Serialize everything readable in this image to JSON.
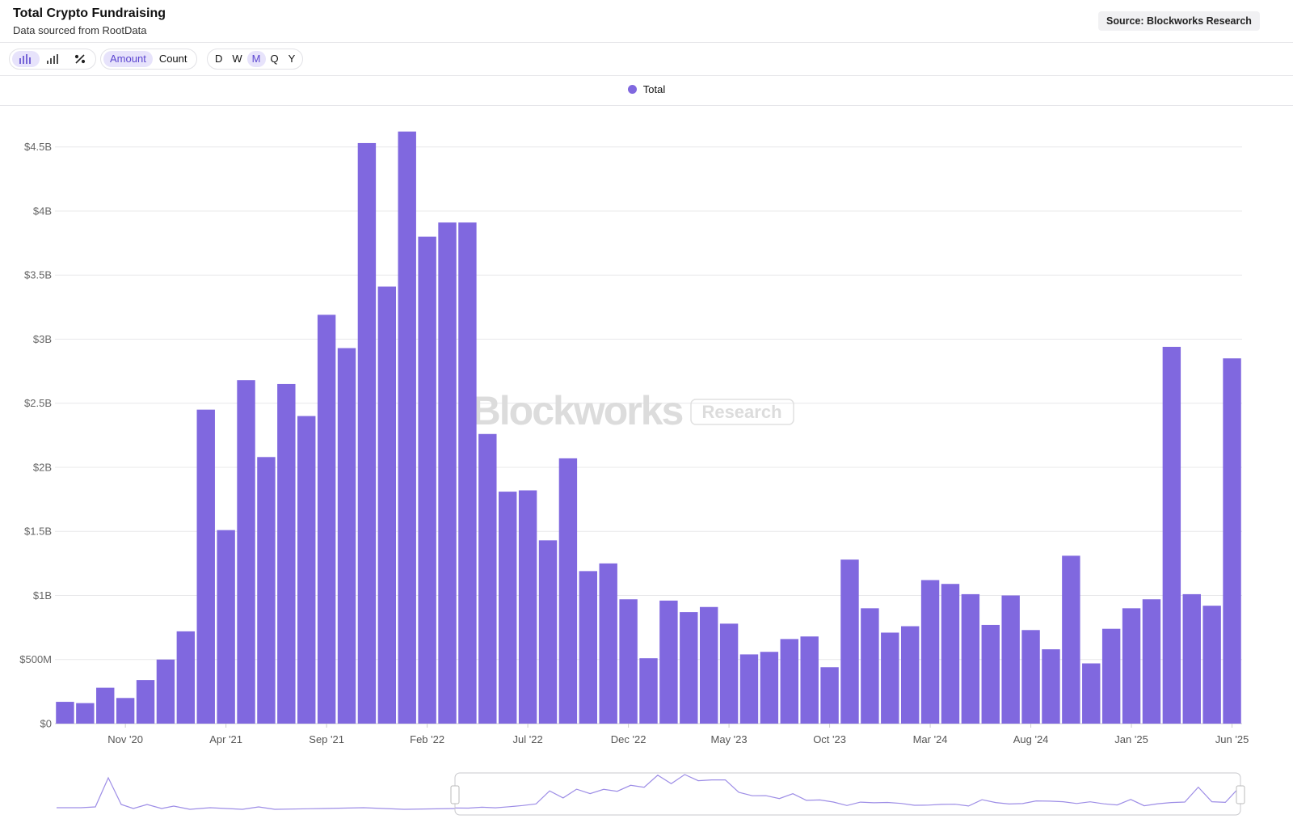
{
  "header": {
    "title": "Total Crypto Fundraising",
    "subtitle": "Data sourced from RootData",
    "source": "Source: Blockworks Research"
  },
  "toolbar": {
    "metrics": [
      "Amount",
      "Count"
    ],
    "active_metric": "Amount",
    "periods": [
      "D",
      "W",
      "M",
      "Q",
      "Y"
    ],
    "active_period": "M"
  },
  "watermark": {
    "brand": "Blockworks",
    "tag": "Research"
  },
  "chart_data": {
    "type": "bar",
    "categories": [
      null,
      null,
      null,
      "Nov '20",
      null,
      null,
      null,
      null,
      "Apr '21",
      null,
      null,
      null,
      null,
      "Sep '21",
      null,
      null,
      null,
      null,
      "Feb '22",
      null,
      null,
      null,
      null,
      "Jul '22",
      null,
      null,
      null,
      null,
      "Dec '22",
      null,
      null,
      null,
      null,
      "May '23",
      null,
      null,
      null,
      null,
      "Oct '23",
      null,
      null,
      null,
      null,
      "Mar '24",
      null,
      null,
      null,
      null,
      "Aug '24",
      null,
      null,
      null,
      null,
      "Jan '25",
      null,
      null,
      null,
      null,
      "Jun '25"
    ],
    "series": [
      {
        "name": "Total",
        "color": "#8068df",
        "values": [
          170000000,
          160000000,
          280000000,
          200000000,
          340000000,
          500000000,
          720000000,
          2450000000,
          1510000000,
          2680000000,
          2080000000,
          2650000000,
          2400000000,
          3190000000,
          2930000000,
          4530000000,
          3410000000,
          4620000000,
          3800000000,
          3910000000,
          3910000000,
          2260000000,
          1810000000,
          1820000000,
          1430000000,
          2070000000,
          1190000000,
          1250000000,
          970000000,
          510000000,
          960000000,
          870000000,
          910000000,
          780000000,
          540000000,
          560000000,
          660000000,
          680000000,
          440000000,
          1280000000,
          900000000,
          710000000,
          760000000,
          1120000000,
          1090000000,
          1010000000,
          770000000,
          1000000000,
          730000000,
          580000000,
          1310000000,
          470000000,
          740000000,
          900000000,
          970000000,
          2940000000,
          1010000000,
          920000000,
          2850000000
        ]
      }
    ],
    "ylim": [
      0,
      4700000000
    ],
    "yticks": [
      {
        "value": 0,
        "label": "$0"
      },
      {
        "value": 500000000,
        "label": "$500M"
      },
      {
        "value": 1000000000,
        "label": "$1B"
      },
      {
        "value": 1500000000,
        "label": "$1.5B"
      },
      {
        "value": 2000000000,
        "label": "$2B"
      },
      {
        "value": 2500000000,
        "label": "$2.5B"
      },
      {
        "value": 3000000000,
        "label": "$3B"
      },
      {
        "value": 3500000000,
        "label": "$3.5B"
      },
      {
        "value": 4000000000,
        "label": "$4B"
      },
      {
        "value": 4500000000,
        "label": "$4.5B"
      }
    ],
    "grid": true,
    "legend": "top"
  }
}
